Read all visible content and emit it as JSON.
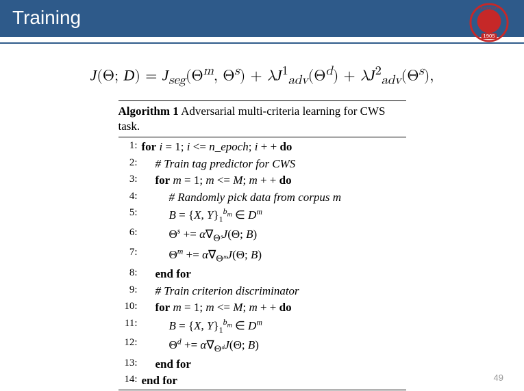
{
  "header": {
    "title": "Training"
  },
  "logo": {
    "year": "1905",
    "color": "#c62828"
  },
  "equation": "𝒥(Θ; 𝒟) = 𝒥ₛₑg(Θᵐ, Θˢ) + λ𝒥¹ₐdᵥ(Θᵈ) + λ𝒥²ₐdᵥ(Θˢ),",
  "algorithm": {
    "number": "1",
    "caption": "Adversarial multi-criteria learning for CWS task.",
    "lines": [
      {
        "n": "1:",
        "indent": 0,
        "html": "<span class='kw'>for</span> <span class='it'>i</span> = 1; <span class='it'>i</span> &lt;= <span class='it'>n_epoch</span>; <span class='it'>i</span> + + <span class='kw'>do</span>"
      },
      {
        "n": "2:",
        "indent": 1,
        "html": "<span class='it'># Train tag predictor for CWS</span>"
      },
      {
        "n": "3:",
        "indent": 1,
        "html": "<span class='kw'>for</span> <span class='it'>m</span> = 1; <span class='it'>m</span> &lt;= <span class='it'>M</span>; <span class='it'>m</span> + + <span class='kw'>do</span>"
      },
      {
        "n": "4:",
        "indent": 2,
        "html": "<span class='it'># Randomly pick data from corpus m</span>"
      },
      {
        "n": "5:",
        "indent": 2,
        "html": "<span class='scr'>B</span> = {<span class='it'>X</span>, <span class='it'>Y</span>}<span class='sub'>1</span><span class='sup'><span class='it'>b<sub>m</sub></span></span> ∈ <span class='scr'>D</span><span class='sup'><span class='it'>m</span></span>"
      },
      {
        "n": "6:",
        "indent": 2,
        "html": "Θ<span class='sup'><span class='it'>s</span></span> += <span class='it'>α</span>∇<sub>Θ<span class='it'>ˢ</span></sub><span class='scr'>J</span>(Θ; <span class='scr'>B</span>)"
      },
      {
        "n": "7:",
        "indent": 2,
        "html": "Θ<span class='sup'><span class='it'>m</span></span> += <span class='it'>α</span>∇<sub>Θ<span class='it'>ᵐ</span></sub><span class='scr'>J</span>(Θ; <span class='scr'>B</span>)"
      },
      {
        "n": "8:",
        "indent": 1,
        "html": "<span class='kw'>end for</span>"
      },
      {
        "n": "9:",
        "indent": 1,
        "html": "<span class='it'># Train criterion discriminator</span>"
      },
      {
        "n": "10:",
        "indent": 1,
        "html": "<span class='kw'>for</span> <span class='it'>m</span> = 1; <span class='it'>m</span> &lt;= <span class='it'>M</span>; <span class='it'>m</span> + + <span class='kw'>do</span>"
      },
      {
        "n": "11:",
        "indent": 2,
        "html": "<span class='scr'>B</span> = {<span class='it'>X</span>, <span class='it'>Y</span>}<span class='sub'>1</span><span class='sup'><span class='it'>b<sub>m</sub></span></span> ∈ <span class='scr'>D</span><span class='sup'><span class='it'>m</span></span>"
      },
      {
        "n": "12:",
        "indent": 2,
        "html": "Θ<span class='sup'><span class='it'>d</span></span> += <span class='it'>α</span>∇<sub>Θ<span class='it'>ᵈ</span></sub><span class='scr'>J</span>(Θ; <span class='scr'>B</span>)"
      },
      {
        "n": "13:",
        "indent": 1,
        "html": "<span class='kw'>end for</span>"
      },
      {
        "n": "14:",
        "indent": 0,
        "html": "<span class='kw'>end for</span>"
      }
    ]
  },
  "page_number": "49",
  "colors": {
    "header_bg": "#2e5a8a",
    "header_text": "#ffffff",
    "body_bg": "#ffffff",
    "rule": "#000000",
    "pagenum": "#999999"
  }
}
